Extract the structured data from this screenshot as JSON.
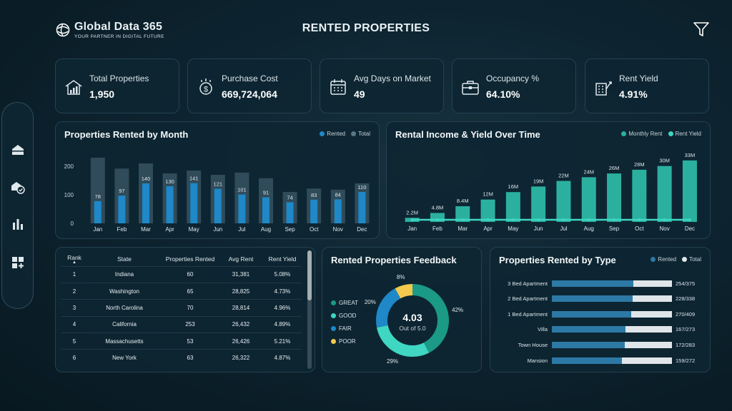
{
  "header": {
    "brand_name": "Global Data 365",
    "brand_tagline": "YOUR PARTNER IN DIGITAL FUTURE",
    "page_title": "RENTED PROPERTIES",
    "filter_icon": "filter-icon"
  },
  "sidebar": {
    "items": [
      {
        "icon": "home-icon"
      },
      {
        "icon": "property-check-icon"
      },
      {
        "icon": "bar-chart-icon"
      },
      {
        "icon": "add-widget-icon"
      }
    ]
  },
  "kpis": [
    {
      "label": "Total Properties",
      "value": "1,950",
      "icon": "house-chart-icon"
    },
    {
      "label": "Purchase Cost",
      "value": "669,724,064",
      "icon": "money-coin-icon"
    },
    {
      "label": "Avg Days on Market",
      "value": "49",
      "icon": "calendar-icon"
    },
    {
      "label": "Occupancy %",
      "value": "64.10%",
      "icon": "briefcase-icon"
    },
    {
      "label": "Rent Yield",
      "value": "4.91%",
      "icon": "building-growth-icon"
    }
  ],
  "colors": {
    "accent_blue": "#1e88c8",
    "accent_teal": "#2bb0a0",
    "teal_light": "#3fd6c2",
    "track": "#dfe5e8"
  },
  "rented_by_month": {
    "title": "Properties Rented by Month",
    "legend": [
      "Rented",
      "Total"
    ],
    "y_ticks": [
      "0",
      "100",
      "200"
    ]
  },
  "income_yield": {
    "title": "Rental Income & Yield Over Time",
    "legend": [
      "Monthly Rent",
      "Rent Yield"
    ]
  },
  "chart_data": [
    {
      "type": "bar",
      "title": "Properties Rented by Month",
      "categories": [
        "Jan",
        "Feb",
        "Mar",
        "Apr",
        "May",
        "Jun",
        "Jul",
        "Aug",
        "Sep",
        "Oct",
        "Nov",
        "Dec"
      ],
      "series": [
        {
          "name": "Rented",
          "values": [
            78,
            97,
            140,
            130,
            141,
            121,
            101,
            91,
            74,
            83,
            84,
            110
          ]
        },
        {
          "name": "Total",
          "values": [
            230,
            192,
            210,
            175,
            185,
            170,
            178,
            158,
            110,
            122,
            118,
            140
          ]
        }
      ],
      "ylim": [
        0,
        250
      ],
      "y_ticks": [
        0,
        100,
        200
      ],
      "legend_position": "top-right"
    },
    {
      "type": "bar",
      "title": "Rental Income & Yield Over Time",
      "categories": [
        "Jan",
        "Feb",
        "Mar",
        "Apr",
        "May",
        "Jun",
        "Jul",
        "Aug",
        "Sep",
        "Oct",
        "Nov",
        "Dec"
      ],
      "series": [
        {
          "name": "Monthly Rent",
          "values": [
            2.2,
            4.8,
            8.4,
            12,
            16,
            19,
            22,
            24,
            26,
            28,
            30,
            33
          ],
          "labels": [
            "2.2M",
            "4.8M",
            "8.4M",
            "12M",
            "16M",
            "19M",
            "22M",
            "24M",
            "26M",
            "28M",
            "30M",
            "33M"
          ]
        },
        {
          "name": "Rent Yield",
          "values": [
            4.91,
            4.91,
            4.91,
            4.91,
            4.91,
            4.91,
            4.91,
            4.91,
            4.91,
            4.91,
            4.91,
            4.91
          ]
        }
      ],
      "ylim": [
        0,
        36
      ],
      "legend_position": "top-right"
    },
    {
      "type": "pie",
      "title": "Rented Properties Feedback",
      "categories": [
        "GREAT",
        "GOOD",
        "FAIR",
        "POOR"
      ],
      "values": [
        42,
        29,
        20,
        8
      ],
      "labels": [
        "42%",
        "29%",
        "20%",
        "8%"
      ],
      "center_value": "4.03",
      "center_caption": "Out of 5.0"
    },
    {
      "type": "bar",
      "title": "Properties Rented by Type",
      "categories": [
        "3 Bed Apartment",
        "2 Bed Apartment",
        "1 Bed Apartment",
        "Villa",
        "Town House",
        "Mansion"
      ],
      "series": [
        {
          "name": "Rented",
          "values": [
            254,
            228,
            270,
            167,
            172,
            159
          ]
        },
        {
          "name": "Total",
          "values": [
            375,
            338,
            409,
            273,
            283,
            272
          ]
        }
      ],
      "labels": [
        "254/375",
        "228/338",
        "270/409",
        "167/273",
        "172/283",
        "159/272"
      ]
    }
  ],
  "state_table": {
    "columns": [
      "Rank",
      "State",
      "Properties Rented",
      "Avg Rent",
      "Rent Yield"
    ],
    "rows": [
      [
        "1",
        "Indiana",
        "60",
        "31,381",
        "5.08%"
      ],
      [
        "2",
        "Washington",
        "65",
        "28,825",
        "4.73%"
      ],
      [
        "3",
        "North Carolina",
        "70",
        "28,814",
        "4.96%"
      ],
      [
        "4",
        "California",
        "253",
        "26,432",
        "4.89%"
      ],
      [
        "5",
        "Massachusetts",
        "53",
        "26,426",
        "5.21%"
      ],
      [
        "6",
        "New York",
        "63",
        "26,322",
        "4.87%"
      ]
    ]
  },
  "feedback": {
    "title": "Rented Properties Feedback",
    "legend": [
      "GREAT",
      "GOOD",
      "FAIR",
      "POOR"
    ],
    "score": "4.03",
    "score_caption": "Out of 5.0"
  },
  "by_type": {
    "title": "Properties Rented by Type",
    "legend": [
      "Rented",
      "Total"
    ]
  }
}
